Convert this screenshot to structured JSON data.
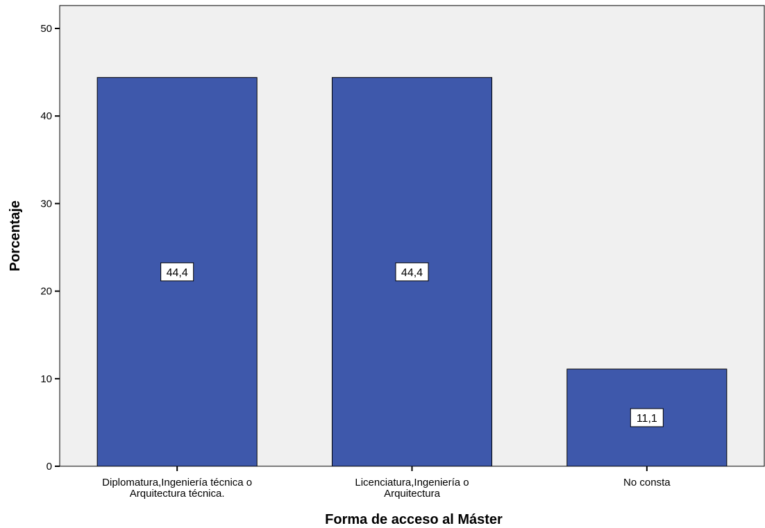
{
  "chart_data": {
    "type": "bar",
    "title": "",
    "xlabel": "Forma de acceso al Máster",
    "ylabel": "Porcentaje",
    "categories": [
      [
        "Diplomatura,Ingeniería técnica o",
        "Arquitectura técnica."
      ],
      [
        "Licenciatura,Ingeniería o",
        "Arquitectura"
      ],
      [
        "No consta"
      ]
    ],
    "values": [
      44.4,
      44.4,
      11.1
    ],
    "data_labels": [
      "44,4",
      "44,4",
      "11,1"
    ],
    "yticks": [
      0,
      10,
      20,
      30,
      40,
      50
    ],
    "ylim": [
      0,
      50
    ],
    "grid": false,
    "legend": "none",
    "colors": {
      "plot_background": "#f0f0f0",
      "bar_fill": "#3e58ab",
      "bar_stroke": "#000000",
      "label_box": "#ffffff"
    }
  }
}
